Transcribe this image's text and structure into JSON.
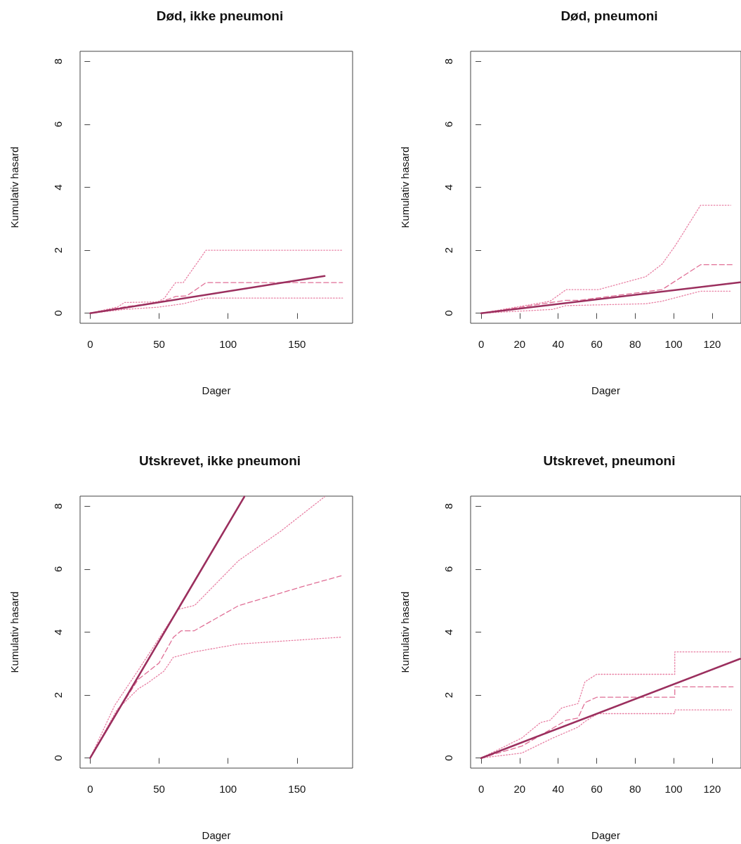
{
  "chart_data": [
    {
      "type": "line",
      "title": "Død, ikke pneumoni",
      "xlabel": "Dager",
      "ylabel": "Kumulativ hasard",
      "xlim": [
        -7.3,
        190.3
      ],
      "ylim": [
        -0.32,
        8.32
      ],
      "xticks": [
        0,
        50,
        100,
        150
      ],
      "yticks": [
        0,
        2,
        4,
        6,
        8
      ],
      "series": [
        {
          "color": "#e87fa3",
          "line_style": "dotted",
          "x": [
            0,
            20,
            25,
            49,
            54,
            57.5,
            62,
            67.5,
            84,
            183
          ],
          "values": [
            0,
            0.2,
            0.34,
            0.36,
            0.48,
            0.71,
            0.97,
            0.97,
            2.0,
            2.0
          ]
        },
        {
          "color": "#e06f96",
          "line_style": "dashed",
          "x": [
            0,
            25,
            50,
            57,
            62,
            70,
            84,
            183
          ],
          "values": [
            0,
            0.2,
            0.35,
            0.45,
            0.53,
            0.55,
            0.97,
            0.97
          ]
        },
        {
          "color": "#e87fa3",
          "line_style": "dotted",
          "x": [
            0,
            25,
            49,
            67.5,
            84,
            183
          ],
          "values": [
            0,
            0.12,
            0.19,
            0.3,
            0.48,
            0.48
          ]
        },
        {
          "color": "#9b2f5e",
          "line_style": "solid",
          "x": [
            0,
            170
          ],
          "values": [
            0,
            1.18
          ]
        }
      ]
    },
    {
      "type": "line",
      "title": "Død, pneumoni",
      "xlabel": "Dager",
      "ylabel": "Kumulativ hasard",
      "xlim": [
        -5.5,
        135
      ],
      "ylim": [
        -0.32,
        8.32
      ],
      "xticks": [
        0,
        20,
        40,
        60,
        80,
        100,
        120
      ],
      "yticks": [
        0,
        2,
        4,
        6,
        8
      ],
      "series": [
        {
          "color": "#e87fa3",
          "line_style": "dotted",
          "x": [
            0,
            35.8,
            44.2,
            61,
            85.5,
            94,
            101,
            114,
            129.7
          ],
          "values": [
            0,
            0.38,
            0.75,
            0.75,
            1.16,
            1.56,
            2.16,
            3.43,
            3.43
          ]
        },
        {
          "color": "#e06f96",
          "line_style": "dashed",
          "x": [
            0,
            44,
            51,
            94,
            114,
            130.9
          ],
          "values": [
            0,
            0.41,
            0.41,
            0.75,
            1.54,
            1.54
          ]
        },
        {
          "color": "#e87fa3",
          "line_style": "dotted",
          "x": [
            0,
            37,
            44,
            85.5,
            94,
            114,
            130
          ],
          "values": [
            0,
            0.12,
            0.24,
            0.3,
            0.38,
            0.7,
            0.7
          ]
        },
        {
          "color": "#9b2f5e",
          "line_style": "solid",
          "x": [
            0,
            134.5
          ],
          "values": [
            0,
            0.98
          ]
        }
      ]
    },
    {
      "type": "line",
      "title": "Utskrevet, ikke pneumoni",
      "xlabel": "Dager",
      "ylabel": "Kumulativ hasard",
      "xlim": [
        -7.3,
        190.3
      ],
      "ylim": [
        -0.32,
        8.32
      ],
      "xticks": [
        0,
        50,
        100,
        150
      ],
      "yticks": [
        0,
        2,
        4,
        6,
        8
      ],
      "series": [
        {
          "color": "#e87fa3",
          "line_style": "dotted",
          "x": [
            0,
            17.9,
            34.9,
            63.6,
            75.8,
            107.6,
            138,
            170
          ],
          "values": [
            0,
            1.68,
            2.79,
            4.72,
            4.85,
            6.27,
            7.2,
            8.3
          ]
        },
        {
          "color": "#e06f96",
          "line_style": "dashed",
          "x": [
            0,
            17.4,
            34.9,
            50,
            60.3,
            65.9,
            75.3,
            107.6,
            155,
            182
          ],
          "values": [
            0,
            1.31,
            2.5,
            3.02,
            3.83,
            4.04,
            4.04,
            4.84,
            5.46,
            5.79
          ]
        },
        {
          "color": "#e87fa3",
          "line_style": "dotted",
          "x": [
            0,
            19.4,
            34.9,
            41.6,
            53.5,
            60.3,
            75.3,
            107.6,
            182
          ],
          "values": [
            0,
            1.53,
            2.2,
            2.38,
            2.76,
            3.2,
            3.37,
            3.62,
            3.84
          ]
        },
        {
          "color": "#9b2f5e",
          "line_style": "solid",
          "x": [
            0,
            111.8
          ],
          "values": [
            0,
            8.3
          ]
        }
      ]
    },
    {
      "type": "line",
      "title": "Utskrevet, pneumoni",
      "xlabel": "Dager",
      "ylabel": "Kumulativ hasard",
      "xlim": [
        -5.5,
        135
      ],
      "ylim": [
        -0.32,
        8.32
      ],
      "xticks": [
        0,
        20,
        40,
        60,
        80,
        100,
        120
      ],
      "yticks": [
        0,
        2,
        4,
        6,
        8
      ],
      "series": [
        {
          "color": "#e87fa3",
          "line_style": "dotted",
          "x": [
            0,
            21.2,
            30.9,
            35.8,
            41.8,
            50.3,
            53.9,
            60,
            100.6,
            100.6,
            129.7
          ],
          "values": [
            0,
            0.64,
            1.13,
            1.2,
            1.59,
            1.73,
            2.42,
            2.66,
            2.66,
            3.37,
            3.37
          ]
        },
        {
          "color": "#e06f96",
          "line_style": "dashed",
          "x": [
            0,
            21.2,
            37,
            44.2,
            50.3,
            53.9,
            60,
            100.6,
            100.6,
            130.9
          ],
          "values": [
            0,
            0.38,
            0.94,
            1.2,
            1.27,
            1.76,
            1.93,
            1.93,
            2.26,
            2.26
          ]
        },
        {
          "color": "#e87fa3",
          "line_style": "dotted",
          "x": [
            0,
            21.2,
            37,
            50.3,
            53.9,
            60.6,
            100.6,
            100.6,
            130
          ],
          "values": [
            0,
            0.16,
            0.63,
            0.98,
            1.16,
            1.41,
            1.41,
            1.53,
            1.53
          ]
        },
        {
          "color": "#9b2f5e",
          "line_style": "solid",
          "x": [
            0,
            134.5
          ],
          "values": [
            0,
            3.15
          ]
        }
      ]
    }
  ]
}
